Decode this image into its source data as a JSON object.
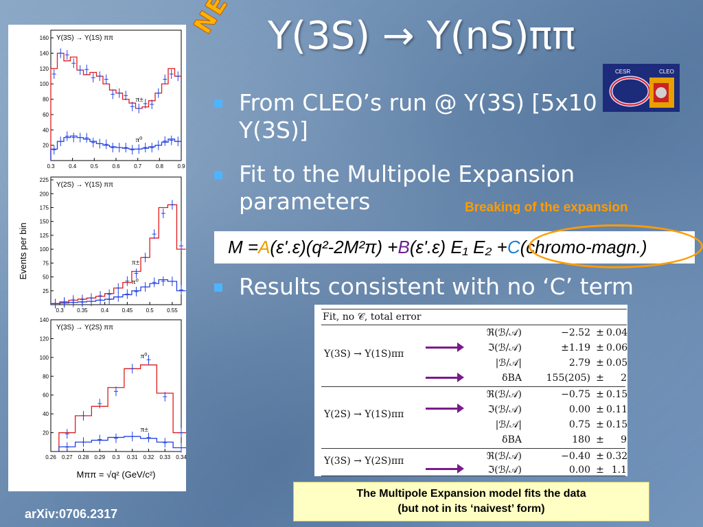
{
  "slide": {
    "title": "Y(3S) → Y(nS)ππ",
    "badge": "NEW",
    "logo": {
      "left": "CESR",
      "right": "CLEO"
    },
    "bullets": [
      "From CLEO’s run @ Y(3S) [5x10\n Y(3S)]",
      "Fit to the Multipole Expansion\nparameters",
      "Results consistent with no ‘C’ term"
    ],
    "breaking_label": "Breaking of the expansion",
    "formula": {
      "prefix": "M = ",
      "a": "A",
      "mid1": "(ε'.ε)(q²-2M²π) + ",
      "b": "B",
      "mid2": "(ε'.ε) E₁ E₂ + ",
      "c": "C",
      "suffix": "(chromo-magn.)"
    },
    "caption": [
      "The Multipole Expansion model fits the data",
      "(but not in its ‘naivest’ form)"
    ],
    "footer": "arXiv:0706.2317"
  },
  "table": {
    "header": "Fit, no 𝒞, total error",
    "groups": [
      {
        "process": "Υ(3S) → Υ(1S)ππ",
        "rows": [
          {
            "q": "ℜ(ℬ/𝒜)",
            "v": "−2.52",
            "e": "0.04"
          },
          {
            "q": "ℑ(ℬ/𝒜)",
            "v": "±1.19",
            "e": "0.06"
          },
          {
            "q": "|ℬ/𝒜|",
            "v": "2.79",
            "e": "0.05"
          },
          {
            "q": "δBA",
            "v": "155(205)",
            "e": "2"
          }
        ]
      },
      {
        "process": "Υ(2S) → Υ(1S)ππ",
        "rows": [
          {
            "q": "ℜ(ℬ/𝒜)",
            "v": "−0.75",
            "e": "0.15"
          },
          {
            "q": "ℑ(ℬ/𝒜)",
            "v": "0.00",
            "e": "0.11"
          },
          {
            "q": "|ℬ/𝒜|",
            "v": "0.75",
            "e": "0.15"
          },
          {
            "q": "δBA",
            "v": "180",
            "e": "9"
          }
        ]
      },
      {
        "process": "Υ(3S) → Υ(2S)ππ",
        "rows": [
          {
            "q": "ℜ(ℬ/𝒜)",
            "v": "−0.40",
            "e": "0.32"
          },
          {
            "q": "ℑ(ℬ/𝒜)",
            "v": "0.00",
            "e": "1.1"
          }
        ]
      }
    ]
  },
  "chart_data": [
    {
      "type": "bar",
      "title": "Υ(3S) → Υ(1S) ππ",
      "xticks": [
        "0.3",
        "0.4",
        "0.5",
        "0.6",
        "0.7",
        "0.8",
        "0.9"
      ],
      "yticks": [
        "20",
        "40",
        "60",
        "80",
        "100",
        "120",
        "140",
        "160"
      ],
      "xlim": [
        0.3,
        0.9
      ],
      "ylim": [
        0,
        170
      ],
      "series": [
        {
          "name": "π±",
          "x": [
            0.3,
            0.33,
            0.36,
            0.39,
            0.42,
            0.45,
            0.48,
            0.51,
            0.54,
            0.57,
            0.6,
            0.63,
            0.66,
            0.69,
            0.72,
            0.75,
            0.78,
            0.81,
            0.84,
            0.87
          ],
          "values": [
            120,
            140,
            130,
            135,
            118,
            112,
            115,
            110,
            100,
            92,
            88,
            80,
            75,
            68,
            70,
            78,
            88,
            100,
            120,
            110
          ]
        },
        {
          "name": "π⁰",
          "x": [
            0.3,
            0.33,
            0.36,
            0.39,
            0.42,
            0.45,
            0.48,
            0.51,
            0.54,
            0.57,
            0.6,
            0.63,
            0.66,
            0.69,
            0.72,
            0.75,
            0.78,
            0.81,
            0.84,
            0.87
          ],
          "values": [
            15,
            25,
            30,
            32,
            30,
            28,
            25,
            22,
            20,
            18,
            17,
            16,
            15,
            15,
            16,
            18,
            20,
            24,
            28,
            25
          ]
        }
      ]
    },
    {
      "type": "bar",
      "title": "Υ(2S) → Υ(1S) ππ",
      "xticks": [
        "0.3",
        "0.35",
        "0.4",
        "0.45",
        "0.5",
        "0.55"
      ],
      "yticks": [
        "25",
        "50",
        "75",
        "100",
        "125",
        "150",
        "175",
        "200",
        "225"
      ],
      "xlim": [
        0.28,
        0.57
      ],
      "ylim": [
        0,
        230
      ],
      "series": [
        {
          "name": "π±",
          "x": [
            0.28,
            0.3,
            0.32,
            0.34,
            0.36,
            0.38,
            0.4,
            0.42,
            0.44,
            0.46,
            0.48,
            0.5,
            0.52,
            0.54,
            0.56
          ],
          "values": [
            2,
            5,
            8,
            10,
            12,
            15,
            20,
            30,
            40,
            60,
            85,
            120,
            175,
            180,
            100
          ]
        },
        {
          "name": "π⁰",
          "x": [
            0.28,
            0.3,
            0.32,
            0.34,
            0.36,
            0.38,
            0.4,
            0.42,
            0.44,
            0.46,
            0.48,
            0.5,
            0.52,
            0.54,
            0.56
          ],
          "values": [
            2,
            3,
            4,
            5,
            6,
            8,
            10,
            14,
            18,
            25,
            32,
            38,
            45,
            42,
            25
          ]
        }
      ]
    },
    {
      "type": "bar",
      "title": "Υ(3S) → Υ(2S) ππ",
      "xticks": [
        "0.26",
        "0.27",
        "0.28",
        "0.29",
        "0.3",
        "0.31",
        "0.32",
        "0.33",
        "0.34"
      ],
      "yticks": [
        "20",
        "40",
        "60",
        "80",
        "100",
        "120",
        "140"
      ],
      "xlim": [
        0.26,
        0.34
      ],
      "ylim": [
        0,
        140
      ],
      "xlabel": "Mππ = √q² (GeV/c²)",
      "ylabel": "Events per bin",
      "series": [
        {
          "name": "π⁰",
          "x": [
            0.265,
            0.275,
            0.285,
            0.295,
            0.305,
            0.315,
            0.325,
            0.335
          ],
          "values": [
            20,
            38,
            48,
            68,
            88,
            92,
            62,
            20
          ]
        },
        {
          "name": "π±",
          "x": [
            0.265,
            0.275,
            0.285,
            0.295,
            0.305,
            0.315,
            0.325,
            0.335
          ],
          "values": [
            5,
            10,
            12,
            15,
            16,
            14,
            10,
            4
          ]
        }
      ]
    }
  ]
}
